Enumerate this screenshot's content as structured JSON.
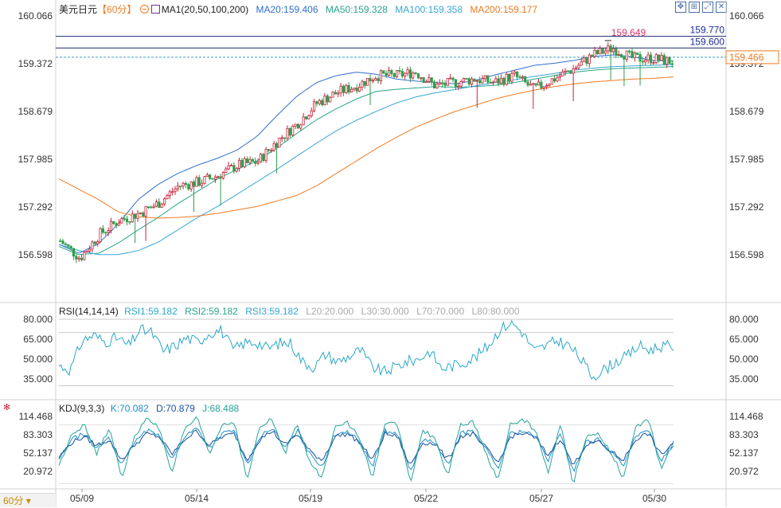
{
  "header": {
    "symbol": "美元日元",
    "timeframe_tag": "【60分】",
    "ma_label": "MA1(20,50,100,200)",
    "ma20": "MA20:159.406",
    "ma50": "MA50:159.328",
    "ma100": "MA100:159.358",
    "ma200": "MA200:159.177"
  },
  "rsi_header": {
    "title": "RSI(14,14,14)",
    "rsi1": "RSI1:59.182",
    "rsi2": "RSI2:59.182",
    "rsi3": "RSI3:59.182",
    "l20": "L20:20.000",
    "l30": "L30:30.000",
    "l70": "L70:70.000",
    "l80": "L80:80.000"
  },
  "kdj_header": {
    "title": "KDJ(9,3,3)",
    "k": "K:70.082",
    "d": "D:70.879",
    "j": "J:68.488"
  },
  "timeframe_button": "60分",
  "icons": [
    "minus-circle-icon",
    "indicator-icon",
    "pan-icon",
    "zoom-icon",
    "expand-icon",
    "close-icon",
    "settings-icon"
  ],
  "colors": {
    "up": "#c8243b",
    "down": "#2e9e4a",
    "ma20": "#2f6fd0",
    "ma50": "#27a58a",
    "ma100": "#39a6d6",
    "ma200": "#f07b22",
    "orange_label": "#f07b22",
    "high_marker": "#d8326f",
    "rsi": "#2aa8c8",
    "k": "#1e8fc7",
    "d": "#1a4f9c",
    "j": "#26a39a"
  },
  "chart_data": [
    {
      "type": "candlestick",
      "title": "美元日元 60分",
      "x_ticks": [
        "05/09",
        "05/14",
        "05/19",
        "05/22",
        "05/27",
        "05/30"
      ],
      "ylim": [
        156.3,
        160.066
      ],
      "y_ticks": [
        "160.066",
        "159.372",
        "158.679",
        "157.985",
        "157.292",
        "156.598"
      ],
      "ma_anchors": {
        "ma20": [
          156.75,
          156.62,
          156.76,
          157.05,
          157.4,
          157.62,
          157.78,
          157.9,
          158.0,
          158.12,
          158.32,
          158.62,
          158.9,
          159.1,
          159.2,
          159.25,
          159.22,
          159.15,
          159.12,
          159.1,
          159.08,
          159.13,
          159.21,
          159.28,
          159.35,
          159.38,
          159.42,
          159.48,
          159.5,
          159.47,
          159.42,
          159.41
        ],
        "ma50": [
          156.72,
          156.6,
          156.62,
          156.77,
          156.96,
          157.14,
          157.34,
          157.52,
          157.7,
          157.84,
          157.96,
          158.15,
          158.36,
          158.56,
          158.72,
          158.86,
          158.97,
          159.0,
          159.02,
          159.04,
          159.03,
          159.04,
          159.06,
          159.1,
          159.15,
          159.2,
          159.25,
          159.28,
          159.3,
          159.31,
          159.32,
          159.33
        ],
        "ma100": [
          156.75,
          156.66,
          156.6,
          156.6,
          156.66,
          156.78,
          156.96,
          157.14,
          157.3,
          157.48,
          157.66,
          157.84,
          158.03,
          158.22,
          158.4,
          158.55,
          158.68,
          158.8,
          158.89,
          158.95,
          159.0,
          159.05,
          159.1,
          159.14,
          159.19,
          159.23,
          159.28,
          159.31,
          159.33,
          159.34,
          159.35,
          159.36
        ],
        "ma200": [
          157.7,
          157.55,
          157.4,
          157.22,
          157.15,
          157.13,
          157.14,
          157.16,
          157.2,
          157.25,
          157.3,
          157.38,
          157.46,
          157.6,
          157.78,
          157.96,
          158.14,
          158.3,
          158.45,
          158.57,
          158.68,
          158.77,
          158.86,
          158.93,
          158.99,
          159.04,
          159.08,
          159.11,
          159.13,
          159.15,
          159.16,
          159.18
        ]
      },
      "close_anchors": [
        156.8,
        156.55,
        156.9,
        157.1,
        157.2,
        157.35,
        157.6,
        157.65,
        157.75,
        157.9,
        157.95,
        158.25,
        158.5,
        158.8,
        158.95,
        159.05,
        159.2,
        159.2,
        159.25,
        159.05,
        159.1,
        159.15,
        159.1,
        159.2,
        159.0,
        159.15,
        159.3,
        159.5,
        159.6,
        159.45,
        159.45,
        159.4
      ],
      "reference_lines": [
        159.77,
        159.6,
        159.466
      ],
      "high_annotation": 159.649,
      "last_price": 159.466
    },
    {
      "type": "line",
      "title": "RSI(14,14,14)",
      "ylim": [
        30,
        80
      ],
      "y_ticks": [
        "80.000",
        "65.000",
        "50.000",
        "35.000"
      ],
      "levels": [
        80,
        70,
        30
      ],
      "series": [
        {
          "name": "RSI1",
          "values": [
            45,
            42,
            64,
            68,
            63,
            66,
            60,
            72,
            70,
            56,
            60,
            66,
            63,
            70,
            72,
            57,
            62,
            63,
            58,
            62,
            62,
            48,
            44,
            54,
            48,
            52,
            57,
            44,
            40,
            44,
            48,
            50,
            56,
            43,
            45,
            48,
            52,
            60,
            72,
            78,
            70,
            56,
            60,
            64,
            60,
            50,
            37,
            42,
            48,
            52,
            60,
            57,
            60,
            59
          ]
        }
      ]
    },
    {
      "type": "line",
      "title": "KDJ(9,3,3)",
      "ylim": [
        0,
        125
      ],
      "y_ticks": [
        "114.468",
        "83.303",
        "52.137",
        "20.972"
      ],
      "series": [
        {
          "name": "K",
          "values": [
            40,
            75,
            85,
            60,
            80,
            30,
            70,
            90,
            85,
            40,
            80,
            95,
            60,
            85,
            90,
            30,
            80,
            95,
            60,
            90,
            50,
            30,
            85,
            90,
            70,
            30,
            90,
            85,
            20,
            75,
            70,
            30,
            85,
            90,
            60,
            25,
            85,
            90,
            80,
            40,
            85,
            20,
            70,
            75,
            55,
            30,
            80,
            90,
            40,
            70
          ]
        },
        {
          "name": "D",
          "values": [
            45,
            70,
            80,
            65,
            75,
            40,
            65,
            85,
            80,
            50,
            75,
            90,
            65,
            80,
            85,
            40,
            75,
            90,
            65,
            85,
            55,
            40,
            80,
            85,
            70,
            40,
            85,
            80,
            30,
            70,
            68,
            40,
            80,
            85,
            62,
            35,
            80,
            86,
            78,
            48,
            78,
            30,
            66,
            72,
            55,
            40,
            76,
            86,
            48,
            70
          ]
        },
        {
          "name": "J",
          "values": [
            30,
            85,
            100,
            50,
            95,
            10,
            80,
            110,
            95,
            20,
            90,
            112,
            50,
            100,
            105,
            5,
            95,
            110,
            50,
            105,
            35,
            10,
            100,
            105,
            75,
            10,
            105,
            100,
            0,
            90,
            78,
            10,
            100,
            105,
            55,
            5,
            100,
            110,
            90,
            20,
            100,
            0,
            80,
            85,
            55,
            10,
            95,
            110,
            25,
            68
          ]
        }
      ]
    }
  ]
}
